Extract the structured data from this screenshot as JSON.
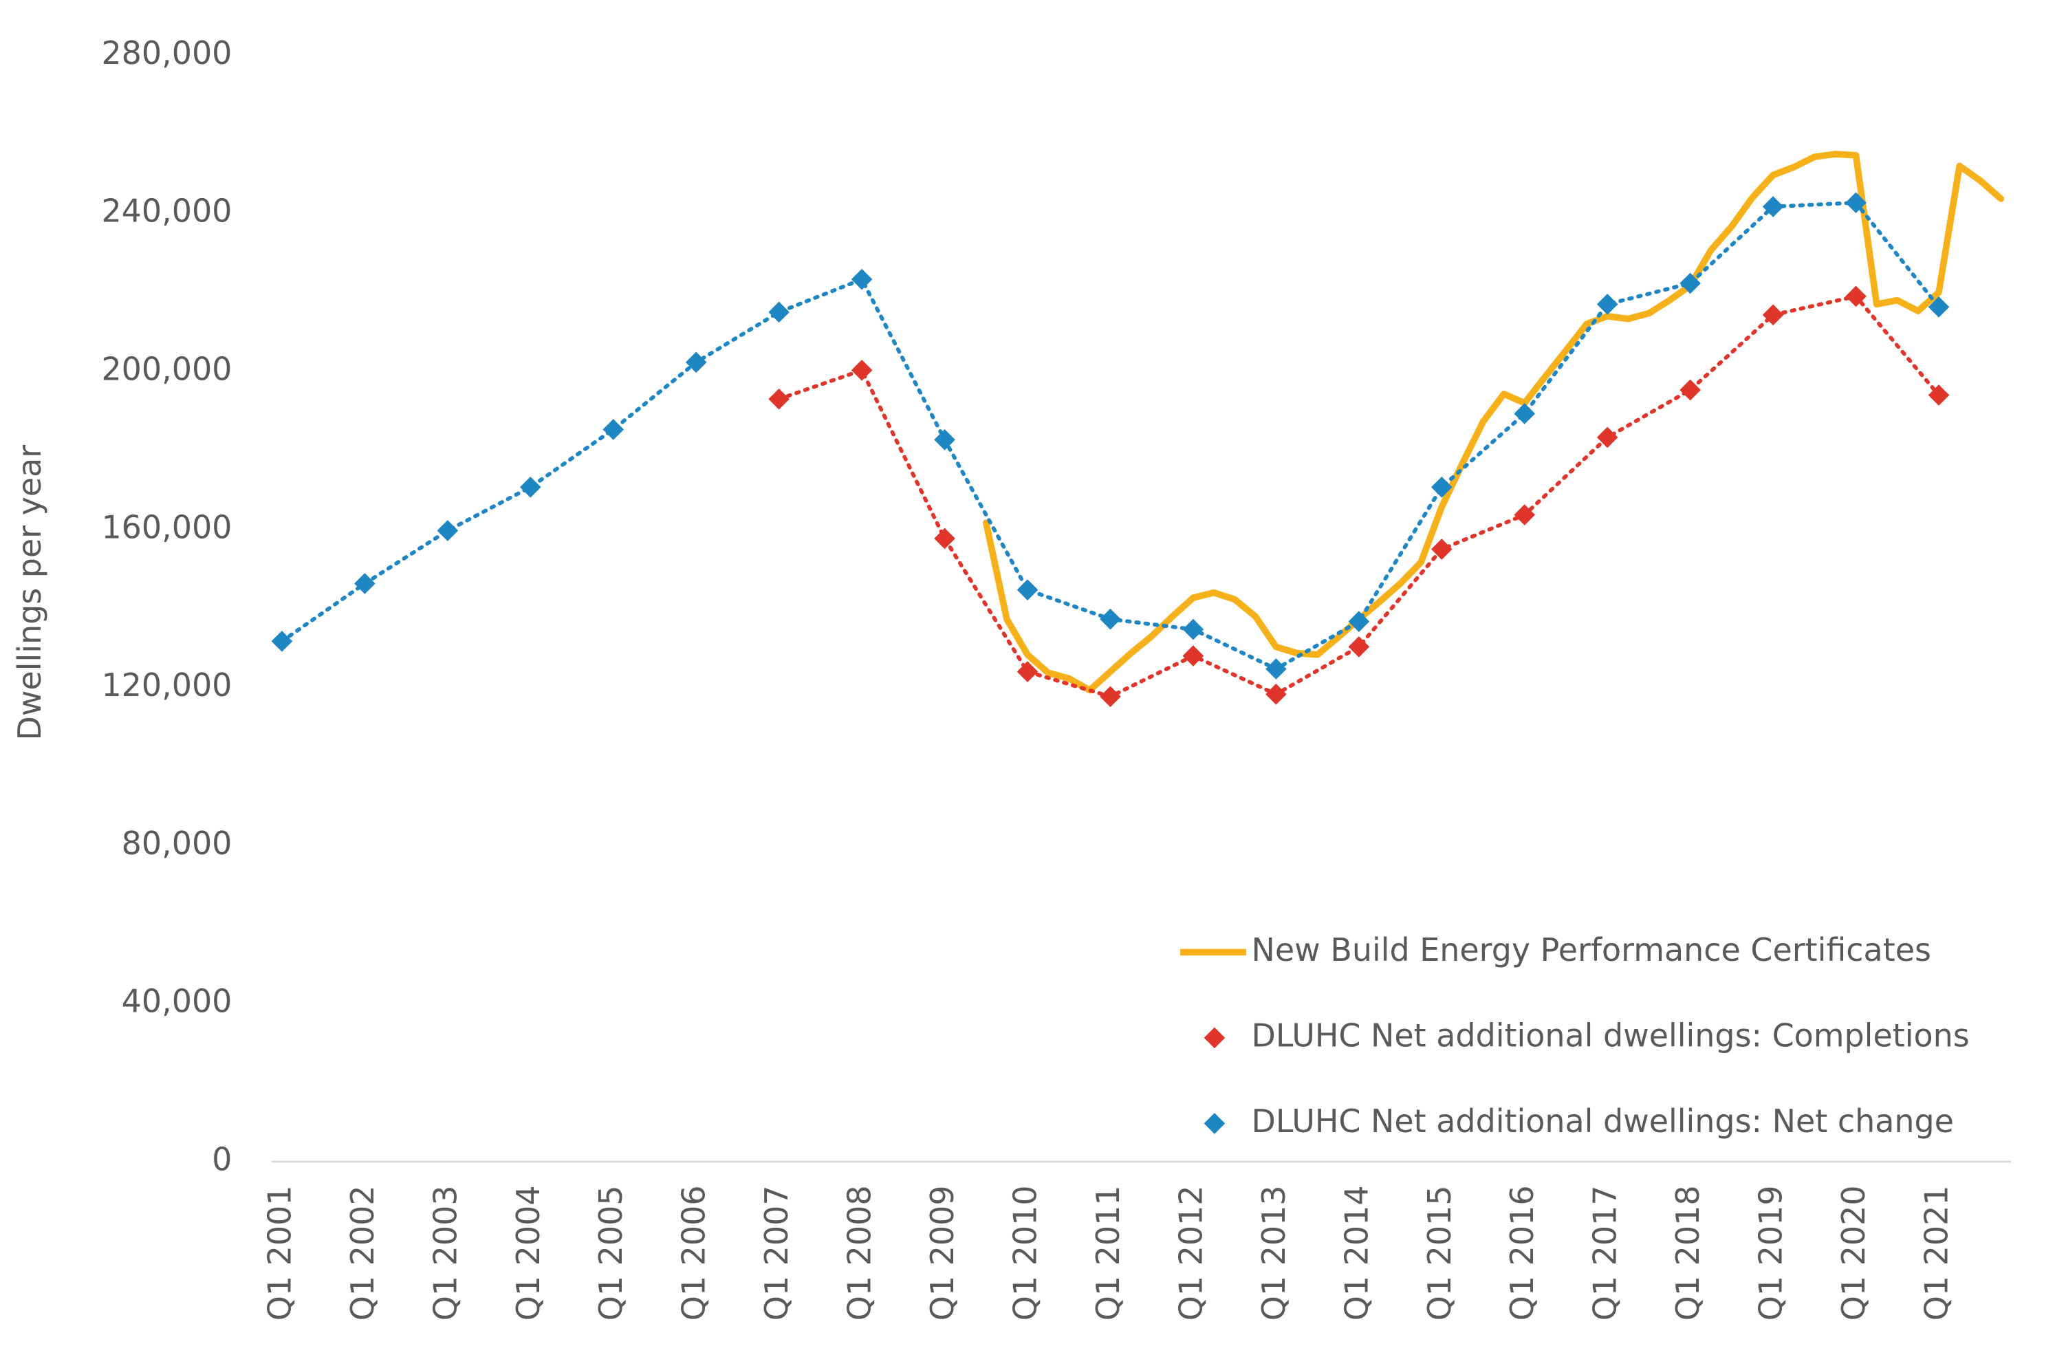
{
  "chart_data": {
    "type": "line",
    "y_label": "Dwellings per year",
    "xlim": [
      2000.875,
      2021.875
    ],
    "xticks": [
      {
        "value": 2001,
        "label": "Q1 2001"
      },
      {
        "value": 2002,
        "label": "Q1 2002"
      },
      {
        "value": 2003,
        "label": "Q1 2003"
      },
      {
        "value": 2004,
        "label": "Q1 2004"
      },
      {
        "value": 2005,
        "label": "Q1 2005"
      },
      {
        "value": 2006,
        "label": "Q1 2006"
      },
      {
        "value": 2007,
        "label": "Q1 2007"
      },
      {
        "value": 2008,
        "label": "Q1 2008"
      },
      {
        "value": 2009,
        "label": "Q1 2009"
      },
      {
        "value": 2010,
        "label": "Q1 2010"
      },
      {
        "value": 2011,
        "label": "Q1 2011"
      },
      {
        "value": 2012,
        "label": "Q1 2012"
      },
      {
        "value": 2013,
        "label": "Q1 2013"
      },
      {
        "value": 2014,
        "label": "Q1 2014"
      },
      {
        "value": 2015,
        "label": "Q1 2015"
      },
      {
        "value": 2016,
        "label": "Q1 2016"
      },
      {
        "value": 2017,
        "label": "Q1 2017"
      },
      {
        "value": 2018,
        "label": "Q1 2018"
      },
      {
        "value": 2019,
        "label": "Q1 2019"
      },
      {
        "value": 2020,
        "label": "Q1 2020"
      },
      {
        "value": 2021,
        "label": "Q1 2021"
      }
    ],
    "ylim": [
      0,
      280000
    ],
    "yticks": [
      0,
      {
        "value": 40000,
        "label": "40,000"
      },
      {
        "value": 80000,
        "label": "80,000"
      },
      {
        "value": 120000,
        "label": "120,000"
      },
      {
        "value": 160000,
        "label": "160,000"
      },
      {
        "value": 200000,
        "label": "200,000"
      },
      {
        "value": 240000,
        "label": "240,000"
      },
      {
        "value": 280000,
        "label": "280,000"
      }
    ],
    "grid": false,
    "legend": "lower right",
    "series": [
      {
        "name": "New Build Energy Performance Certificates",
        "color": "#f5b01a",
        "line_style": "solid",
        "marker": "none",
        "x": [
          2009.5,
          2009.75,
          2010,
          2010.25,
          2010.5,
          2010.75,
          2011,
          2011.25,
          2011.5,
          2011.75,
          2012,
          2012.25,
          2012.5,
          2012.75,
          2013,
          2013.25,
          2013.5,
          2013.75,
          2014,
          2014.25,
          2014.5,
          2014.75,
          2015,
          2015.25,
          2015.5,
          2015.75,
          2016,
          2016.25,
          2016.5,
          2016.75,
          2017,
          2017.25,
          2017.5,
          2017.75,
          2018,
          2018.25,
          2018.5,
          2018.75,
          2019,
          2019.25,
          2019.5,
          2019.75,
          2020,
          2020.25,
          2020.5,
          2020.75,
          2021,
          2021.25,
          2021.5,
          2021.75
        ],
        "values": [
          161700,
          137300,
          128300,
          123700,
          122300,
          119300,
          124000,
          128700,
          133000,
          138000,
          142700,
          144000,
          142300,
          138000,
          130300,
          128700,
          128300,
          132700,
          137300,
          141700,
          146300,
          151700,
          165700,
          176700,
          187300,
          194300,
          192000,
          198700,
          205300,
          212000,
          214000,
          213300,
          214700,
          218000,
          221700,
          230700,
          236700,
          244000,
          249700,
          251700,
          254300,
          255000,
          254700,
          217000,
          218000,
          215300,
          220000,
          252000,
          248300,
          243700
        ]
      },
      {
        "name": "DLUHC Net additional dwellings: Completions",
        "color": "#e0352b",
        "line_style": "dotted",
        "marker": "diamond",
        "x": [
          2007,
          2008,
          2009,
          2010,
          2011,
          2012,
          2013,
          2014,
          2015,
          2016,
          2017,
          2018,
          2019,
          2020,
          2021
        ],
        "values": [
          193000,
          200300,
          157700,
          124000,
          117700,
          128000,
          118300,
          130300,
          155000,
          163700,
          183300,
          195300,
          214300,
          219000,
          194000
        ]
      },
      {
        "name": "DLUHC Net additional dwellings: Net change",
        "color": "#1f86c4",
        "line_style": "dotted",
        "marker": "diamond",
        "x": [
          2001,
          2002,
          2003,
          2004,
          2005,
          2006,
          2007,
          2008,
          2009,
          2010,
          2011,
          2012,
          2013,
          2014,
          2015,
          2016,
          2017,
          2018,
          2019,
          2020,
          2021
        ],
        "values": [
          131700,
          146300,
          159700,
          170700,
          185300,
          202300,
          215000,
          223300,
          182700,
          144700,
          137300,
          134700,
          124700,
          136700,
          170700,
          189300,
          217000,
          222300,
          241700,
          242700,
          216300
        ]
      }
    ]
  }
}
